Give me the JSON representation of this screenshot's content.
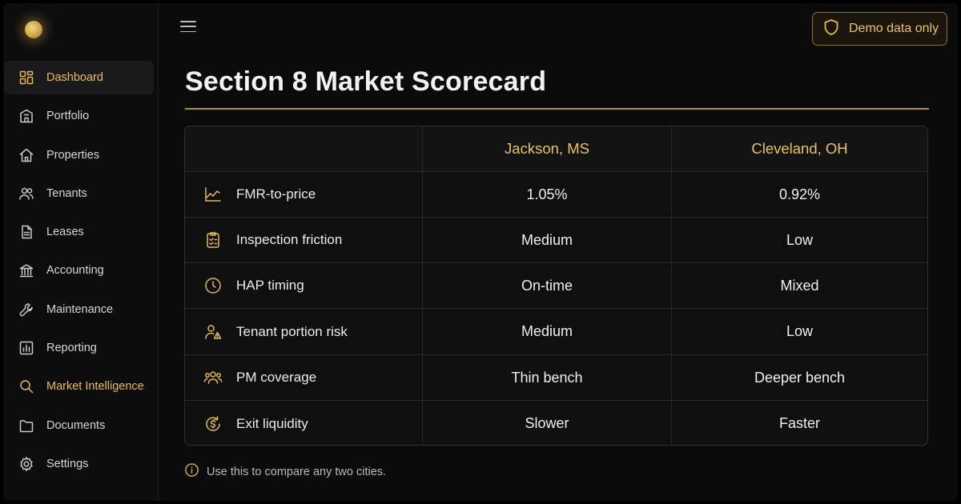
{
  "sidebar": {
    "logo": "gold-orb-logo",
    "items": [
      {
        "label": "Dashboard",
        "icon": "dashboard-grid-icon",
        "active": true
      },
      {
        "label": "Portfolio",
        "icon": "building-icon"
      },
      {
        "label": "Properties",
        "icon": "home-icon"
      },
      {
        "label": "Tenants",
        "icon": "users-icon"
      },
      {
        "label": "Leases",
        "icon": "document-icon"
      },
      {
        "label": "Accounting",
        "icon": "bank-icon"
      },
      {
        "label": "Maintenance",
        "icon": "wrench-icon"
      },
      {
        "label": "Reporting",
        "icon": "bar-chart-icon"
      },
      {
        "label": "Market Intelligence",
        "icon": "search-icon",
        "highlighted": true
      },
      {
        "label": "Documents",
        "icon": "folder-icon"
      },
      {
        "label": "Settings",
        "icon": "gear-icon"
      }
    ]
  },
  "header": {
    "badge_label": "Demo data only",
    "badge_icon": "shield-icon"
  },
  "page": {
    "title": "Section 8 Market Scorecard"
  },
  "table": {
    "columns": [
      "",
      "Jackson, MS",
      "Cleveland, OH"
    ],
    "rows": [
      {
        "metric": "FMR-to-price",
        "icon": "trend-chart-icon",
        "a": "1.05%",
        "b": "0.92%"
      },
      {
        "metric": "Inspection friction",
        "icon": "clipboard-check-icon",
        "a": "Medium",
        "b": "Low"
      },
      {
        "metric": "HAP timing",
        "icon": "clock-icon",
        "a": "On-time",
        "b": "Mixed"
      },
      {
        "metric": "Tenant portion risk",
        "icon": "user-warning-icon",
        "a": "Medium",
        "b": "Low"
      },
      {
        "metric": "PM coverage",
        "icon": "team-icon",
        "a": "Thin bench",
        "b": "Deeper bench"
      },
      {
        "metric": "Exit liquidity",
        "icon": "dollar-cycle-icon",
        "a": "Slower",
        "b": "Faster"
      }
    ]
  },
  "footer_note": {
    "icon": "info-icon",
    "text": "Use this to compare any two cities."
  },
  "colors": {
    "accent": "#e4b94f",
    "background": "#0b0b0c",
    "panel_border": "#303033"
  }
}
